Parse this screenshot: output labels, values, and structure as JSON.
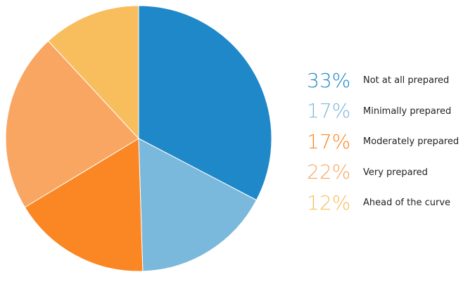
{
  "chart_data": {
    "type": "pie",
    "title": "",
    "slices": [
      {
        "label": "Not at all prepared",
        "value": 33,
        "display": "33%",
        "color": "#1f88c9"
      },
      {
        "label": "Minimally prepared",
        "value": 17,
        "display": "17%",
        "color": "#7ab9db"
      },
      {
        "label": "Moderately prepared",
        "value": 17,
        "display": "17%",
        "color": "#fb8724"
      },
      {
        "label": "Very prepared",
        "value": 22,
        "display": "22%",
        "color": "#f9a662"
      },
      {
        "label": "Ahead of the curve",
        "value": 12,
        "display": "12%",
        "color": "#f8bd5d"
      }
    ],
    "start_angle_deg": 0,
    "direction": "clockwise",
    "legend_position": "right"
  }
}
